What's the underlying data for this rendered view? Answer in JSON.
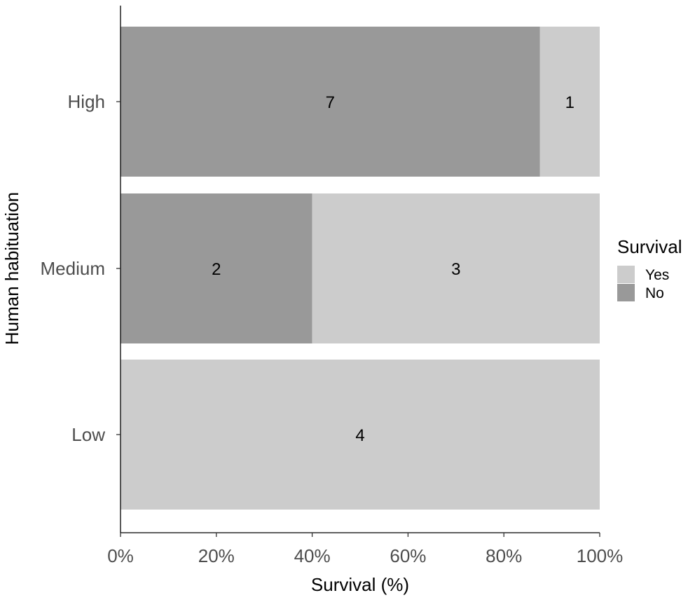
{
  "chart_data": {
    "type": "bar",
    "orientation": "horizontal",
    "stacked": "percent",
    "categories": [
      "High",
      "Medium",
      "Low"
    ],
    "series": [
      {
        "name": "No",
        "values": [
          7,
          2,
          0
        ],
        "color": "#999999"
      },
      {
        "name": "Yes",
        "values": [
          1,
          3,
          4
        ],
        "color": "#cccccc"
      }
    ],
    "xlabel": "Survival (%)",
    "ylabel": "Human habituation",
    "xlim": [
      0,
      100
    ],
    "xticks": [
      0,
      20,
      40,
      60,
      80,
      100
    ],
    "xtick_labels": [
      "0%",
      "20%",
      "40%",
      "60%",
      "80%",
      "100%"
    ],
    "grid": false,
    "legend": {
      "title": "Survival",
      "position": "right",
      "entries": [
        {
          "label": "Yes",
          "color": "#cccccc"
        },
        {
          "label": "No",
          "color": "#999999"
        }
      ]
    }
  }
}
